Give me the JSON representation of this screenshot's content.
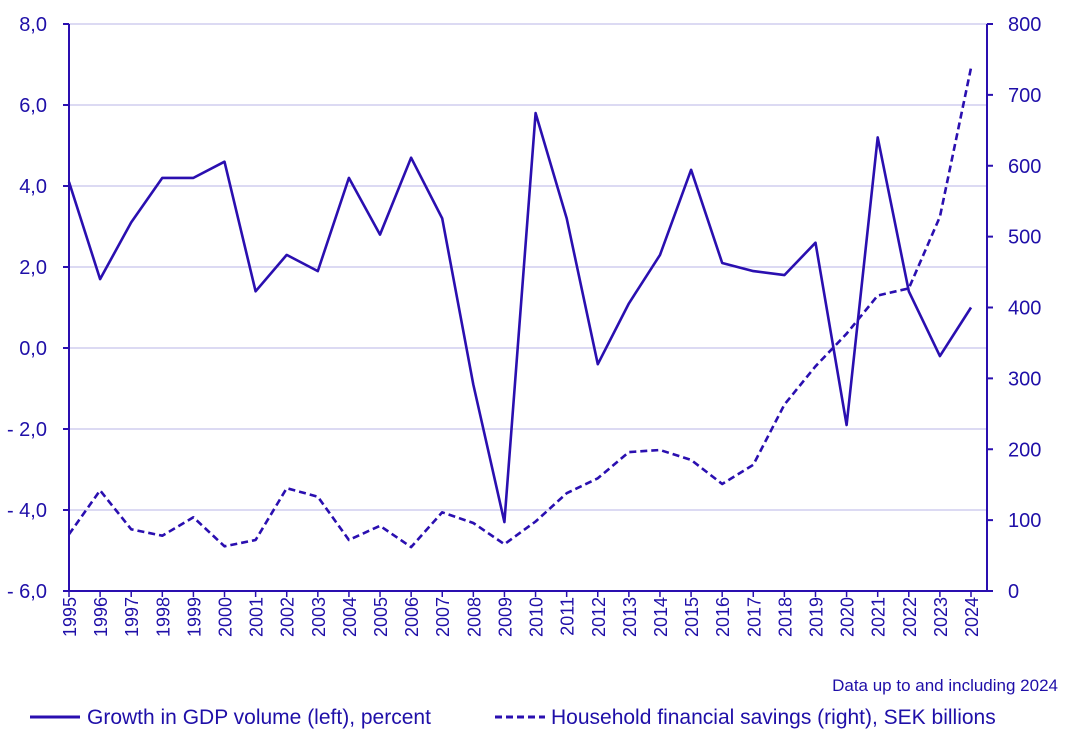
{
  "colors": {
    "series": "#2a0fb0",
    "grid": "#c8c4ec",
    "text": "#1f0fa8"
  },
  "chart_data": {
    "type": "line",
    "x": [
      "1995",
      "1996",
      "1997",
      "1998",
      "1999",
      "2000",
      "2001",
      "2002",
      "2003",
      "2004",
      "2005",
      "2006",
      "2007",
      "2008",
      "2009",
      "2010",
      "2011",
      "2012",
      "2013",
      "2014",
      "2015",
      "2016",
      "2017",
      "2018",
      "2019",
      "2020",
      "2021",
      "2022",
      "2023",
      "2024"
    ],
    "left_axis": {
      "ylim": [
        -6,
        8
      ],
      "ticks": [
        8,
        6,
        4,
        2,
        0,
        -2,
        -4,
        -6
      ],
      "tick_labels": [
        "8,0",
        "6,0",
        "4,0",
        "2,0",
        "0,0",
        "- 2,0",
        "- 4,0",
        "- 6,0"
      ]
    },
    "right_axis": {
      "ylim": [
        0,
        800
      ],
      "ticks": [
        800,
        700,
        600,
        500,
        400,
        300,
        200,
        100,
        0
      ],
      "tick_labels": [
        "800",
        "700",
        "600",
        "500",
        "400",
        "300",
        "200",
        "100",
        "0"
      ]
    },
    "series": [
      {
        "name": "Growth in GDP volume (left), percent",
        "axis": "left",
        "style": "solid",
        "values": [
          4.1,
          1.7,
          3.1,
          4.2,
          4.2,
          4.6,
          1.4,
          2.3,
          1.9,
          4.2,
          2.8,
          4.7,
          3.2,
          -0.9,
          -4.3,
          5.8,
          3.2,
          -0.4,
          1.1,
          2.3,
          4.4,
          2.1,
          1.9,
          1.8,
          2.6,
          -1.9,
          5.2,
          1.4,
          -0.2,
          1.0
        ]
      },
      {
        "name": "Household financial savings (right), SEK billions",
        "axis": "right",
        "style": "dashed",
        "values": [
          80,
          142,
          87,
          78,
          104,
          63,
          72,
          145,
          133,
          72,
          92,
          62,
          111,
          96,
          66,
          98,
          138,
          159,
          196,
          199,
          185,
          151,
          178,
          263,
          317,
          363,
          417,
          427,
          528,
          738
        ]
      }
    ],
    "note": "Data up to and including 2024"
  }
}
